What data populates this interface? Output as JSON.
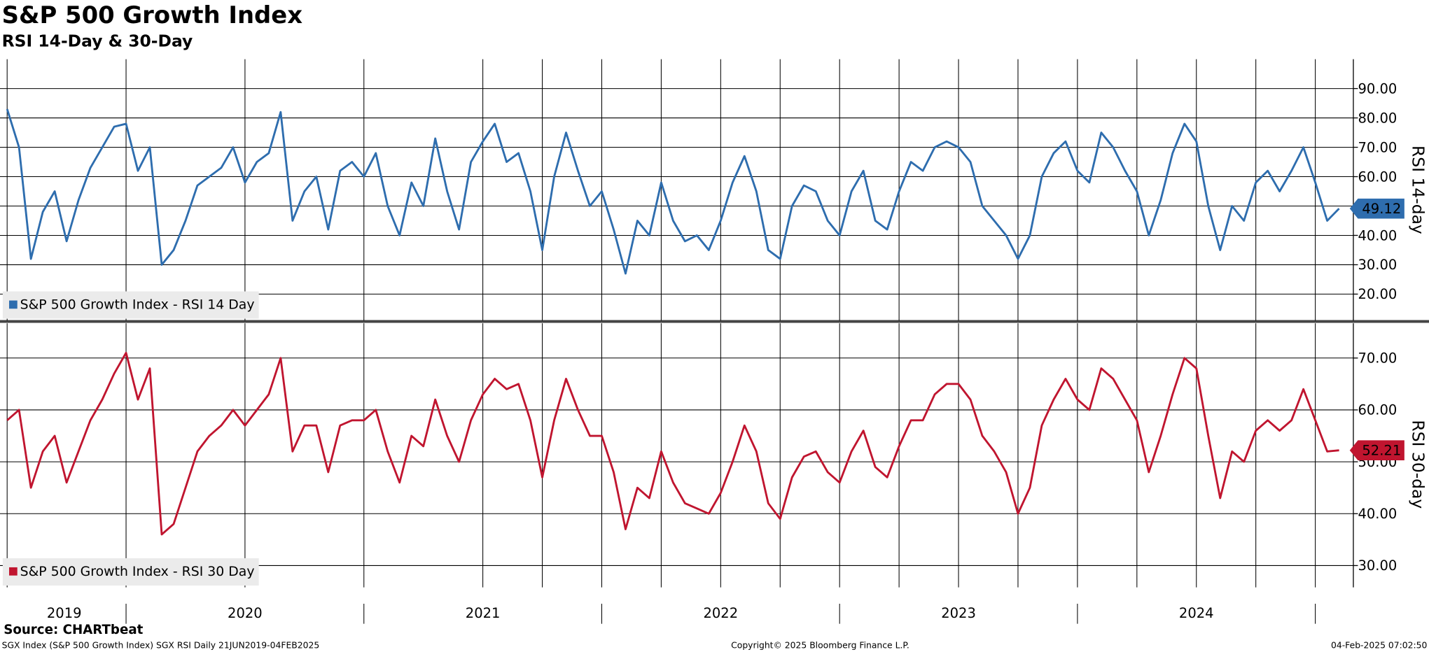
{
  "title": "S&P 500 Growth Index",
  "subtitle": "RSI 14-Day & 30-Day",
  "source": "Source: CHARTbeat",
  "footer": {
    "left": "SGX Index (S&P 500 Growth Index) SGX RSI  Daily 21JUN2019-04FEB2025",
    "center": "Copyright© 2025 Bloomberg Finance L.P.",
    "right": "04-Feb-2025 07:02:50"
  },
  "chart_data": [
    {
      "type": "line",
      "axis_label": "RSI 14-day",
      "xlim": [
        2019.47,
        2025.16
      ],
      "ylim": [
        11,
        100
      ],
      "yticks": [
        {
          "value": 20,
          "label": "20.00"
        },
        {
          "value": 30,
          "label": "30.00"
        },
        {
          "value": 40,
          "label": "40.00"
        },
        {
          "value": 50,
          "label": "50.00"
        },
        {
          "value": 60,
          "label": "60.00"
        },
        {
          "value": 70,
          "label": "70.00"
        },
        {
          "value": 80,
          "label": "80.00"
        },
        {
          "value": 90,
          "label": "90.00"
        }
      ],
      "xgrid": [
        2019.5,
        2020,
        2020.5,
        2021,
        2021.5,
        2021.75,
        2022,
        2022.25,
        2022.5,
        2022.75,
        2023,
        2023.25,
        2023.5,
        2023.75,
        2024,
        2024.25,
        2024.5,
        2024.75,
        2025
      ],
      "x": [
        2019.5,
        2019.55,
        2019.6,
        2019.65,
        2019.7,
        2019.75,
        2019.8,
        2019.85,
        2019.9,
        2019.95,
        2020.0,
        2020.05,
        2020.1,
        2020.15,
        2020.2,
        2020.25,
        2020.3,
        2020.35,
        2020.4,
        2020.45,
        2020.5,
        2020.55,
        2020.6,
        2020.65,
        2020.7,
        2020.75,
        2020.8,
        2020.85,
        2020.9,
        2020.95,
        2021.0,
        2021.05,
        2021.1,
        2021.15,
        2021.2,
        2021.25,
        2021.3,
        2021.35,
        2021.4,
        2021.45,
        2021.5,
        2021.55,
        2021.6,
        2021.65,
        2021.7,
        2021.75,
        2021.8,
        2021.85,
        2021.9,
        2021.95,
        2022.0,
        2022.05,
        2022.1,
        2022.15,
        2022.2,
        2022.25,
        2022.3,
        2022.35,
        2022.4,
        2022.45,
        2022.5,
        2022.55,
        2022.6,
        2022.65,
        2022.7,
        2022.75,
        2022.8,
        2022.85,
        2022.9,
        2022.95,
        2023.0,
        2023.05,
        2023.1,
        2023.15,
        2023.2,
        2023.25,
        2023.3,
        2023.35,
        2023.4,
        2023.45,
        2023.5,
        2023.55,
        2023.6,
        2023.65,
        2023.7,
        2023.75,
        2023.8,
        2023.85,
        2023.9,
        2023.95,
        2024.0,
        2024.05,
        2024.1,
        2024.15,
        2024.2,
        2024.25,
        2024.3,
        2024.35,
        2024.4,
        2024.45,
        2024.5,
        2024.55,
        2024.6,
        2024.65,
        2024.7,
        2024.75,
        2024.8,
        2024.85,
        2024.9,
        2024.95,
        2025.0,
        2025.05,
        2025.1
      ],
      "series": [
        {
          "name": "S&P 500 Growth Index - RSI 14 Day",
          "color": "#2e6dae",
          "values": [
            83,
            70,
            32,
            48,
            55,
            38,
            52,
            63,
            70,
            77,
            78,
            62,
            70,
            30,
            35,
            45,
            57,
            60,
            63,
            70,
            58,
            65,
            68,
            82,
            45,
            55,
            60,
            42,
            62,
            65,
            60,
            68,
            50,
            40,
            58,
            50,
            73,
            55,
            42,
            65,
            72,
            78,
            65,
            68,
            55,
            35,
            60,
            75,
            62,
            50,
            55,
            42,
            27,
            45,
            40,
            58,
            45,
            38,
            40,
            35,
            45,
            58,
            67,
            55,
            35,
            32,
            50,
            57,
            55,
            45,
            40,
            55,
            62,
            45,
            42,
            55,
            65,
            62,
            70,
            72,
            70,
            65,
            50,
            45,
            40,
            32,
            40,
            60,
            68,
            72,
            62,
            58,
            75,
            70,
            62,
            55,
            40,
            52,
            68,
            78,
            72,
            50,
            35,
            50,
            45,
            58,
            62,
            55,
            62,
            70,
            58,
            45,
            49.12
          ]
        }
      ]
    },
    {
      "type": "line",
      "axis_label": "RSI 30-day",
      "xlim": [
        2019.47,
        2025.16
      ],
      "ylim": [
        25.8,
        76.7
      ],
      "yticks": [
        {
          "value": 30,
          "label": "30.00"
        },
        {
          "value": 40,
          "label": "40.00"
        },
        {
          "value": 50,
          "label": "50.00"
        },
        {
          "value": 60,
          "label": "60.00"
        },
        {
          "value": 70,
          "label": "70.00"
        }
      ],
      "xgrid": [
        2019.5,
        2020,
        2020.5,
        2021,
        2021.5,
        2021.75,
        2022,
        2022.25,
        2022.5,
        2022.75,
        2023,
        2023.25,
        2023.5,
        2023.75,
        2024,
        2024.25,
        2024.5,
        2024.75,
        2025
      ],
      "xticks": [
        {
          "value": 2019.74,
          "label": "2019"
        },
        {
          "value": 2020.5,
          "label": "2020"
        },
        {
          "value": 2021.5,
          "label": "2021"
        },
        {
          "value": 2022.5,
          "label": "2022"
        },
        {
          "value": 2023.5,
          "label": "2023"
        },
        {
          "value": 2024.5,
          "label": "2024"
        }
      ],
      "x": [
        2019.5,
        2019.55,
        2019.6,
        2019.65,
        2019.7,
        2019.75,
        2019.8,
        2019.85,
        2019.9,
        2019.95,
        2020.0,
        2020.05,
        2020.1,
        2020.15,
        2020.2,
        2020.25,
        2020.3,
        2020.35,
        2020.4,
        2020.45,
        2020.5,
        2020.55,
        2020.6,
        2020.65,
        2020.7,
        2020.75,
        2020.8,
        2020.85,
        2020.9,
        2020.95,
        2021.0,
        2021.05,
        2021.1,
        2021.15,
        2021.2,
        2021.25,
        2021.3,
        2021.35,
        2021.4,
        2021.45,
        2021.5,
        2021.55,
        2021.6,
        2021.65,
        2021.7,
        2021.75,
        2021.8,
        2021.85,
        2021.9,
        2021.95,
        2022.0,
        2022.05,
        2022.1,
        2022.15,
        2022.2,
        2022.25,
        2022.3,
        2022.35,
        2022.4,
        2022.45,
        2022.5,
        2022.55,
        2022.6,
        2022.65,
        2022.7,
        2022.75,
        2022.8,
        2022.85,
        2022.9,
        2022.95,
        2023.0,
        2023.05,
        2023.1,
        2023.15,
        2023.2,
        2023.25,
        2023.3,
        2023.35,
        2023.4,
        2023.45,
        2023.5,
        2023.55,
        2023.6,
        2023.65,
        2023.7,
        2023.75,
        2023.8,
        2023.85,
        2023.9,
        2023.95,
        2024.0,
        2024.05,
        2024.1,
        2024.15,
        2024.2,
        2024.25,
        2024.3,
        2024.35,
        2024.4,
        2024.45,
        2024.5,
        2024.55,
        2024.6,
        2024.65,
        2024.7,
        2024.75,
        2024.8,
        2024.85,
        2024.9,
        2024.95,
        2025.0,
        2025.05,
        2025.1
      ],
      "series": [
        {
          "name": "S&P 500 Growth Index - RSI 30 Day",
          "color": "#c0152f",
          "values": [
            58,
            60,
            45,
            52,
            55,
            46,
            52,
            58,
            62,
            67,
            71,
            62,
            68,
            36,
            38,
            45,
            52,
            55,
            57,
            60,
            57,
            60,
            63,
            70,
            52,
            57,
            57,
            48,
            57,
            58,
            58,
            60,
            52,
            46,
            55,
            53,
            62,
            55,
            50,
            58,
            63,
            66,
            64,
            65,
            58,
            47,
            58,
            66,
            60,
            55,
            55,
            48,
            37,
            45,
            43,
            52,
            46,
            42,
            41,
            40,
            44,
            50,
            57,
            52,
            42,
            39,
            47,
            51,
            52,
            48,
            46,
            52,
            56,
            49,
            47,
            53,
            58,
            58,
            63,
            65,
            65,
            62,
            55,
            52,
            48,
            40,
            45,
            57,
            62,
            66,
            62,
            60,
            68,
            66,
            62,
            58,
            48,
            55,
            63,
            70,
            68,
            55,
            43,
            52,
            50,
            56,
            58,
            56,
            58,
            64,
            58,
            52,
            52.21
          ]
        }
      ]
    }
  ]
}
